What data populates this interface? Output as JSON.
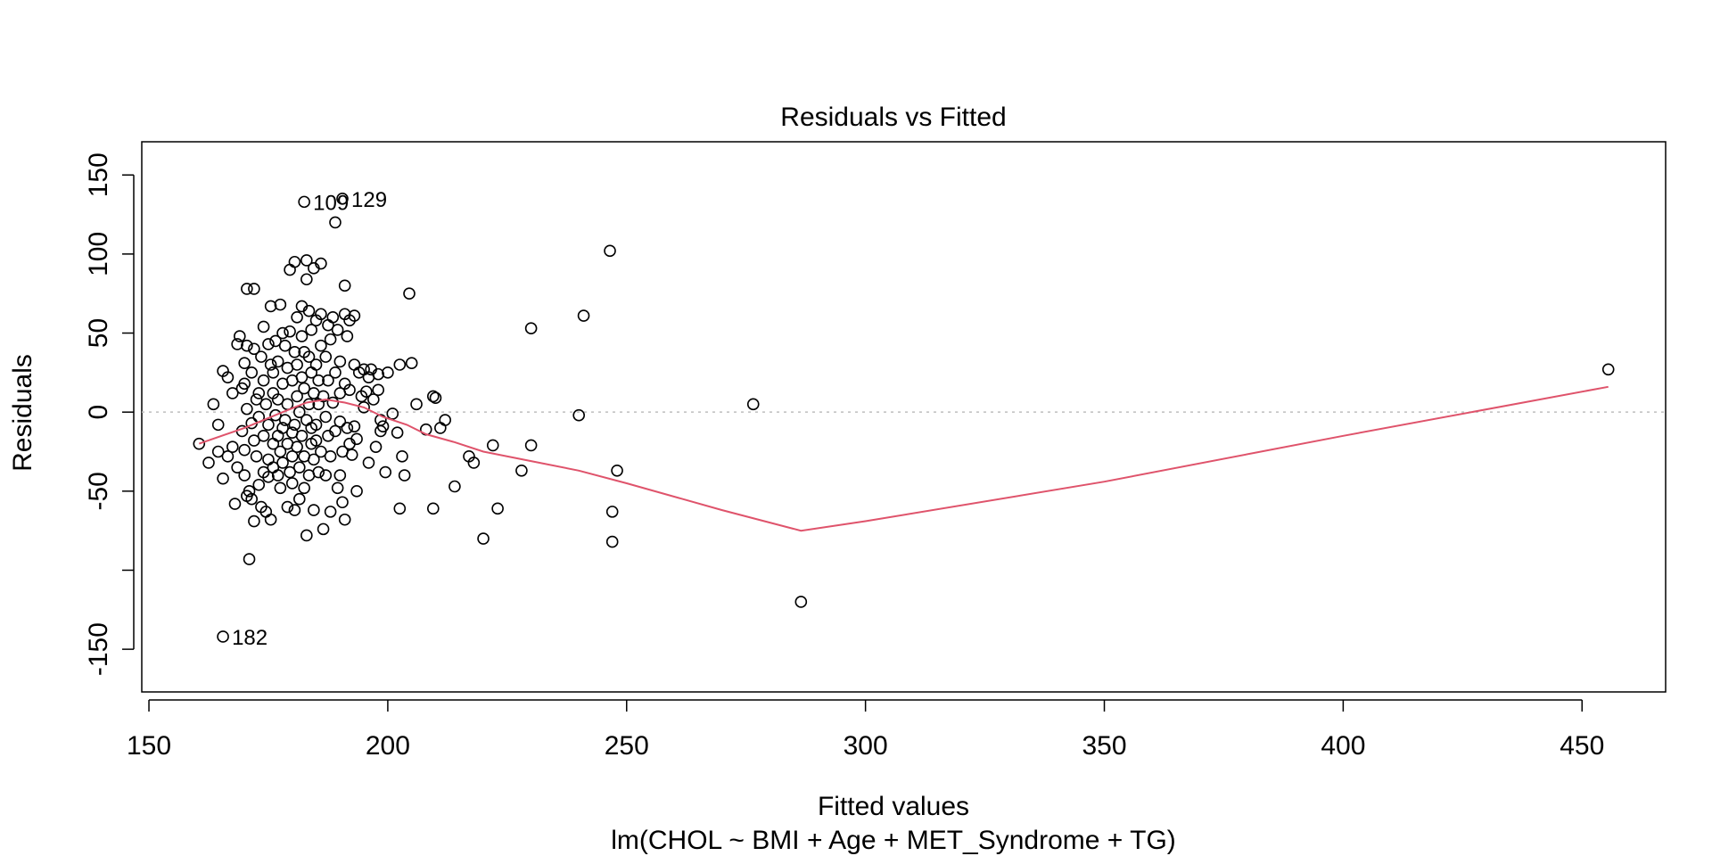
{
  "chart_data": {
    "type": "scatter",
    "title": "Residuals vs Fitted",
    "xlabel": "Fitted values",
    "ylabel": "Residuals",
    "subtitle": "lm(CHOL ~ BMI + Age + MET_Syndrome + TG)",
    "xlim": [
      148.5,
      467.5
    ],
    "ylim": [
      -177,
      171
    ],
    "x_ticks": [
      150,
      200,
      250,
      300,
      350,
      400,
      450
    ],
    "x_tick_labels": [
      "150",
      "200",
      "250",
      "300",
      "350",
      "400",
      "450"
    ],
    "y_ticks": [
      150,
      100,
      50,
      0,
      -50,
      -100,
      -150
    ],
    "y_tick_labels": [
      "150",
      "100",
      "50",
      "0",
      "-50",
      "",
      "-150"
    ],
    "reference_line": 0,
    "grid": false,
    "colors": {
      "points": "#000000",
      "smoother": "#DF536B",
      "reference": "#BEBEBE"
    },
    "labeled_points": [
      {
        "label": "109",
        "x": 182.5,
        "y": 133
      },
      {
        "label": "129",
        "x": 190.5,
        "y": 135
      },
      {
        "label": "182",
        "x": 165.5,
        "y": -142
      }
    ],
    "points": [
      [
        160.5,
        -20
      ],
      [
        162.5,
        -32
      ],
      [
        163.5,
        5
      ],
      [
        164.5,
        -8
      ],
      [
        164.5,
        -25
      ],
      [
        165.5,
        26
      ],
      [
        165.5,
        -42
      ],
      [
        166.5,
        22
      ],
      [
        166.5,
        -28
      ],
      [
        167.5,
        -22
      ],
      [
        167.5,
        12
      ],
      [
        168,
        -58
      ],
      [
        168.5,
        -35
      ],
      [
        168.5,
        43
      ],
      [
        169,
        48
      ],
      [
        169.5,
        -12
      ],
      [
        169.5,
        15
      ],
      [
        170,
        18
      ],
      [
        170,
        -24
      ],
      [
        170,
        -40
      ],
      [
        170,
        31
      ],
      [
        170.5,
        78
      ],
      [
        170.5,
        -53
      ],
      [
        170.5,
        42
      ],
      [
        170.5,
        2
      ],
      [
        171,
        -93
      ],
      [
        171,
        -50
      ],
      [
        171.5,
        -7
      ],
      [
        171.5,
        -55
      ],
      [
        171.5,
        25
      ],
      [
        172,
        -69
      ],
      [
        172,
        78
      ],
      [
        172,
        -18
      ],
      [
        172,
        40
      ],
      [
        172.5,
        8
      ],
      [
        172.5,
        -28
      ],
      [
        173,
        -46
      ],
      [
        173,
        -3
      ],
      [
        173,
        12
      ],
      [
        173.5,
        -60
      ],
      [
        173.5,
        35
      ],
      [
        174,
        -38
      ],
      [
        174,
        20
      ],
      [
        174,
        -15
      ],
      [
        174,
        54
      ],
      [
        174.5,
        -63
      ],
      [
        174.5,
        5
      ],
      [
        175,
        -30
      ],
      [
        175,
        43
      ],
      [
        175,
        -8
      ],
      [
        175,
        -41
      ],
      [
        175.5,
        67
      ],
      [
        175.5,
        -68
      ],
      [
        175.5,
        30
      ],
      [
        176,
        -20
      ],
      [
        176,
        -35
      ],
      [
        176,
        12
      ],
      [
        176,
        25
      ],
      [
        176.5,
        -2
      ],
      [
        176.5,
        45
      ],
      [
        177,
        -40
      ],
      [
        177,
        -15
      ],
      [
        177,
        8
      ],
      [
        177,
        32
      ],
      [
        177.5,
        68
      ],
      [
        177.5,
        -25
      ],
      [
        177.5,
        -48
      ],
      [
        178,
        -10
      ],
      [
        178,
        18
      ],
      [
        178,
        50
      ],
      [
        178,
        -32
      ],
      [
        178.5,
        -5
      ],
      [
        178.5,
        42
      ],
      [
        179,
        -20
      ],
      [
        179,
        -60
      ],
      [
        179,
        5
      ],
      [
        179,
        28
      ],
      [
        179.5,
        -38
      ],
      [
        179.5,
        90
      ],
      [
        179.5,
        51
      ],
      [
        180,
        -13
      ],
      [
        180,
        20
      ],
      [
        180,
        -28
      ],
      [
        180,
        -45
      ],
      [
        180.5,
        95
      ],
      [
        180.5,
        38
      ],
      [
        180.5,
        -62
      ],
      [
        180.5,
        -8
      ],
      [
        181,
        10
      ],
      [
        181,
        -22
      ],
      [
        181,
        30
      ],
      [
        181,
        60
      ],
      [
        181.5,
        -55
      ],
      [
        181.5,
        -35
      ],
      [
        181.5,
        0
      ],
      [
        182,
        48
      ],
      [
        182,
        -15
      ],
      [
        182,
        22
      ],
      [
        182,
        67
      ],
      [
        182.5,
        -48
      ],
      [
        182.5,
        15
      ],
      [
        182.5,
        -28
      ],
      [
        182.5,
        38
      ],
      [
        183,
        84
      ],
      [
        183,
        -5
      ],
      [
        183,
        96
      ],
      [
        183,
        -78
      ],
      [
        183.5,
        35
      ],
      [
        183.5,
        -40
      ],
      [
        183.5,
        5
      ],
      [
        183.5,
        64
      ],
      [
        184,
        -20
      ],
      [
        184,
        25
      ],
      [
        184,
        -10
      ],
      [
        184,
        52
      ],
      [
        184.5,
        91
      ],
      [
        184.5,
        -30
      ],
      [
        184.5,
        12
      ],
      [
        184.5,
        -62
      ],
      [
        185,
        -8
      ],
      [
        185,
        30
      ],
      [
        185,
        -18
      ],
      [
        185,
        58
      ],
      [
        185.5,
        -38
      ],
      [
        185.5,
        20
      ],
      [
        185.5,
        5
      ],
      [
        186,
        94
      ],
      [
        186,
        -25
      ],
      [
        186,
        62
      ],
      [
        186,
        42
      ],
      [
        186.5,
        -74
      ],
      [
        186.5,
        10
      ],
      [
        187,
        -3
      ],
      [
        187,
        -40
      ],
      [
        187,
        35
      ],
      [
        187.5,
        55
      ],
      [
        187.5,
        -15
      ],
      [
        187.5,
        20
      ],
      [
        188,
        -28
      ],
      [
        188,
        46
      ],
      [
        188,
        -63
      ],
      [
        188.5,
        60
      ],
      [
        188.5,
        6
      ],
      [
        189,
        120
      ],
      [
        189,
        -12
      ],
      [
        189,
        25
      ],
      [
        189.5,
        -48
      ],
      [
        189.5,
        52
      ],
      [
        190,
        -6
      ],
      [
        190,
        -40
      ],
      [
        190,
        12
      ],
      [
        190,
        32
      ],
      [
        190.5,
        -57
      ],
      [
        190.5,
        -25
      ],
      [
        191,
        -68
      ],
      [
        191,
        62
      ],
      [
        191,
        80
      ],
      [
        191,
        18
      ],
      [
        191.5,
        -10
      ],
      [
        191.5,
        48
      ],
      [
        192,
        -20
      ],
      [
        192,
        58
      ],
      [
        192,
        14
      ],
      [
        192.5,
        -27
      ],
      [
        193,
        61
      ],
      [
        193,
        30
      ],
      [
        193,
        -9
      ],
      [
        193.5,
        -17
      ],
      [
        193.5,
        -50
      ],
      [
        194,
        25
      ],
      [
        194.5,
        10
      ],
      [
        195,
        27
      ],
      [
        195,
        3
      ],
      [
        195.5,
        13
      ],
      [
        196,
        -32
      ],
      [
        196,
        22
      ],
      [
        196.5,
        27
      ],
      [
        197,
        8
      ],
      [
        197.5,
        -22
      ],
      [
        198,
        14
      ],
      [
        198,
        24
      ],
      [
        198.5,
        -12
      ],
      [
        198.5,
        -5
      ],
      [
        199,
        -9
      ],
      [
        199.5,
        -38
      ],
      [
        200,
        25
      ],
      [
        201,
        -1
      ],
      [
        202,
        -13
      ],
      [
        202.5,
        30
      ],
      [
        202.5,
        -61
      ],
      [
        203,
        -28
      ],
      [
        203.5,
        -40
      ],
      [
        204.5,
        75
      ],
      [
        205,
        31
      ],
      [
        206,
        5
      ],
      [
        208,
        -11
      ],
      [
        209.5,
        -61
      ],
      [
        209.5,
        10
      ],
      [
        210,
        9
      ],
      [
        211,
        -10
      ],
      [
        212,
        -5
      ],
      [
        214,
        -47
      ],
      [
        217,
        -28
      ],
      [
        218,
        -32
      ],
      [
        220,
        -80
      ],
      [
        222,
        -21
      ],
      [
        223,
        -61
      ],
      [
        228,
        -37
      ],
      [
        230,
        53
      ],
      [
        230,
        -21
      ],
      [
        240,
        -2
      ],
      [
        241,
        61
      ],
      [
        246.5,
        102
      ],
      [
        247,
        -63
      ],
      [
        247,
        -82
      ],
      [
        248,
        -37
      ],
      [
        276.5,
        5
      ],
      [
        286.5,
        -120
      ],
      [
        455.5,
        27
      ]
    ],
    "smoother": [
      [
        160.5,
        -20
      ],
      [
        170,
        -10
      ],
      [
        178,
        0
      ],
      [
        183,
        6
      ],
      [
        187,
        8
      ],
      [
        191,
        6
      ],
      [
        195,
        3
      ],
      [
        199,
        -3
      ],
      [
        204,
        -8
      ],
      [
        208,
        -14
      ],
      [
        214,
        -19
      ],
      [
        220,
        -25
      ],
      [
        230,
        -31
      ],
      [
        240,
        -37
      ],
      [
        250,
        -45
      ],
      [
        270,
        -62
      ],
      [
        286.5,
        -75
      ],
      [
        300,
        -69
      ],
      [
        350,
        -44
      ],
      [
        400,
        -15
      ],
      [
        455.5,
        16
      ]
    ]
  }
}
